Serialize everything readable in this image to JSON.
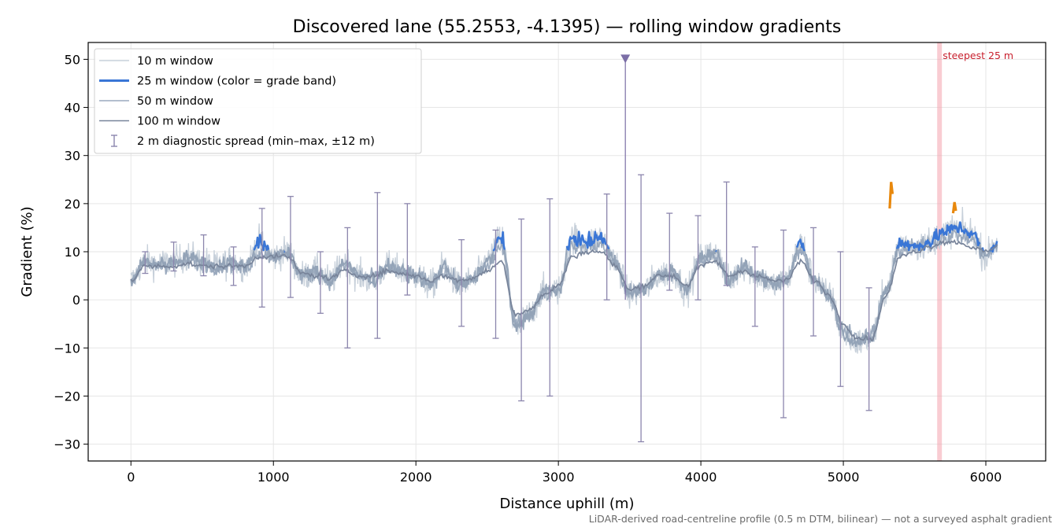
{
  "chart_data": {
    "type": "line",
    "title": "Discovered lane (55.2553, -4.1395) — rolling window gradients",
    "xlabel": "Distance uphill (m)",
    "ylabel": "Gradient (%)",
    "xlim": [
      -300,
      6420
    ],
    "ylim": [
      -33.5,
      53.5
    ],
    "x_ticks": [
      0,
      1000,
      2000,
      3000,
      4000,
      5000,
      6000
    ],
    "y_ticks": [
      -30,
      -20,
      -10,
      0,
      10,
      20,
      30,
      40,
      50
    ],
    "x_tick_labels": [
      "0",
      "1000",
      "2000",
      "3000",
      "4000",
      "5000",
      "6000"
    ],
    "y_tick_labels": [
      "−30",
      "−20",
      "−10",
      "0",
      "10",
      "20",
      "30",
      "40",
      "50"
    ],
    "grid": true,
    "legend_position": "top-left",
    "footnote": "LiDAR-derived road-centreline profile (0.5 m DTM, bilinear) — not a surveyed asphalt gradient",
    "steepest_annotation": {
      "label": "steepest 25 m",
      "x": 5675,
      "color": "#f4a3ad"
    },
    "off_scale_marker": {
      "x": 3470,
      "y_from": 0,
      "y_to": 50,
      "color": "#7b6ea6"
    },
    "profile": {
      "x": [
        0,
        100,
        200,
        300,
        400,
        500,
        600,
        700,
        800,
        900,
        1000,
        1100,
        1200,
        1300,
        1400,
        1500,
        1600,
        1700,
        1800,
        1900,
        2000,
        2100,
        2200,
        2300,
        2400,
        2500,
        2600,
        2700,
        2800,
        2900,
        3000,
        3100,
        3200,
        3300,
        3400,
        3500,
        3600,
        3700,
        3800,
        3900,
        4000,
        4100,
        4200,
        4300,
        4400,
        4500,
        4600,
        4700,
        4800,
        4900,
        5000,
        5100,
        5200,
        5300,
        5400,
        5500,
        5600,
        5700,
        5800,
        5900,
        6000,
        6080
      ],
      "window_25m": [
        4,
        8,
        7.5,
        8,
        9,
        8,
        7,
        8,
        7,
        12,
        9,
        10,
        5,
        6,
        4,
        8,
        5,
        4,
        7,
        6,
        5,
        3,
        7,
        3,
        4,
        8,
        13,
        -6,
        -3,
        2,
        2,
        13,
        12,
        13,
        8,
        1,
        2,
        5,
        6,
        2,
        9,
        10,
        4,
        7,
        5,
        3,
        4,
        12,
        4,
        1,
        -7,
        -9,
        -8,
        2,
        12,
        11,
        12,
        14,
        15,
        14,
        9,
        12
      ],
      "window_50m": [
        4,
        7.5,
        7,
        7.5,
        8,
        7.5,
        7,
        7.5,
        6.5,
        10,
        9,
        9.5,
        5,
        5.5,
        4,
        7,
        5,
        4.5,
        6.5,
        5.5,
        5,
        3.5,
        6,
        3.5,
        4,
        7,
        11,
        -5,
        -3,
        1.5,
        2.5,
        11,
        11,
        11.5,
        7.5,
        1.5,
        2.5,
        5,
        5.5,
        2.5,
        8,
        9,
        4.5,
        6.5,
        5,
        3.5,
        4,
        10,
        4,
        1,
        -6,
        -8,
        -7,
        2,
        10.5,
        11,
        11.5,
        13,
        13.5,
        12.5,
        9,
        11
      ],
      "window_100m": [
        4,
        7,
        7,
        7,
        7.5,
        7,
        7,
        7,
        7,
        9,
        9,
        9,
        5.5,
        5,
        4.5,
        6,
        5,
        5,
        6,
        5.5,
        5,
        4,
        5,
        4,
        4.5,
        6,
        8,
        -3,
        -2,
        1,
        3,
        9,
        10,
        10,
        7,
        2,
        3,
        5,
        5,
        3,
        7,
        8,
        5,
        6,
        5,
        4,
        4,
        8,
        4,
        1,
        -5,
        -8,
        -8,
        1,
        9,
        10,
        11,
        12,
        12,
        11,
        10,
        11
      ]
    },
    "diagnostic_spread": {
      "x": [
        100,
        300,
        510,
        720,
        920,
        1120,
        1330,
        1520,
        1730,
        1940,
        2320,
        2560,
        2740,
        2940,
        3340,
        3580,
        3780,
        3980,
        4180,
        4380,
        4580,
        4790,
        4980,
        5180
      ],
      "min": [
        5.5,
        6,
        5,
        3,
        -1.5,
        0.5,
        -2.8,
        -10,
        -8,
        1,
        -5.5,
        -8,
        -21,
        -20,
        0,
        -29.5,
        2,
        0,
        3,
        -5.5,
        -24.5,
        -7.5,
        -18,
        -23
      ],
      "max": [
        10,
        12,
        13.5,
        11,
        19,
        21.5,
        10,
        15,
        22.3,
        20,
        12.5,
        14.5,
        16.8,
        21,
        22,
        26,
        18,
        17.5,
        24.5,
        11,
        14.5,
        15,
        10,
        2.5
      ]
    },
    "grade_band_highlights": [
      {
        "x_from": 5325,
        "x_to": 5345,
        "y": [
          19,
          24.5,
          22
        ],
        "color": "#e8880d"
      },
      {
        "x_from": 5770,
        "x_to": 5790,
        "y": [
          18,
          20.3,
          18.5
        ],
        "color": "#e8880d"
      }
    ],
    "legend": [
      {
        "label": "10 m window",
        "color": "#c7d0da",
        "style": "line"
      },
      {
        "label": "25 m window (color = grade band)",
        "color": "#3a76d6",
        "style": "thick-line"
      },
      {
        "label": "50 m window",
        "color": "#9aa9bd",
        "style": "line"
      },
      {
        "label": "100 m window",
        "color": "#78849a",
        "style": "line"
      },
      {
        "label": "2 m diagnostic spread (min–max, ±12 m)",
        "color": "#8c86ad",
        "style": "errorbar"
      }
    ],
    "colors": {
      "window_10m": "#c7d0da",
      "window_25m_blue": "#3a76d6",
      "window_25m_gray": "#93a3b7",
      "window_50m": "#9aa9bd",
      "window_100m": "#78849a",
      "spread": "#8c86ad",
      "grid": "#e6e6e6"
    }
  }
}
